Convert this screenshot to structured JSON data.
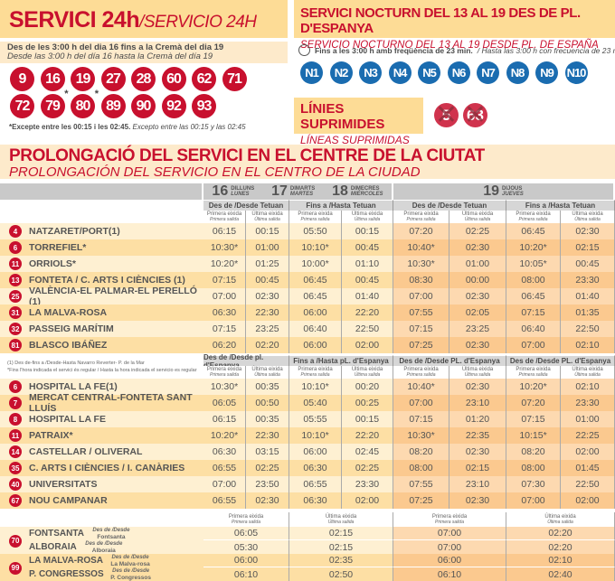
{
  "service24": {
    "title": "SERVICI 24h",
    "title_es": "/SERVICIO 24H",
    "period": "Des de les 3:00 h del dia 16 fins a la Cremà del dia 19",
    "period_es": "Desde las 3:00 h del día 16 hasta la Cremà  del día 19",
    "lines_row1": [
      "9",
      "16",
      "19",
      "27",
      "28",
      "60",
      "62",
      "71"
    ],
    "lines_row2": [
      "72",
      "79",
      "80",
      "89",
      "90",
      "92",
      "93"
    ],
    "starred": [
      "79",
      "80"
    ],
    "note": "*Excepte entre les 00:15 i les 02:45.",
    "note_es": "Excepto entre las 00:15 y las 02:45"
  },
  "night": {
    "title": "SERVICI NOCTURN DEL 13 AL 19 DES DE PL. D'ESPANYA",
    "title_es": "SERVICIO NOCTURNO DEL 13 AL 19 DESDE PL. DE ESPAÑA",
    "freq": "Fins a les 3:00 h amb freqüència de 23 min.",
    "freq_es": "/ Hasta las 3:00 h con frecuencia de 23 min.",
    "lines": [
      "N1",
      "N2",
      "N3",
      "N4",
      "N5",
      "N6",
      "N7",
      "N8",
      "N9",
      "N10"
    ]
  },
  "suppressed": {
    "title": "LÍNIES SUPRIMIDES",
    "title_es": "LÍNEAS SUPRIMIDAS",
    "lines": [
      "5",
      "63"
    ]
  },
  "prolong": {
    "title": "PROLONGACIÓ DEL SERVICI EN EL CENTRE DE LA CIUTAT",
    "title_es": "PROLONGACIÓN DEL SERVICIO EN EL CENTRO DE LA CIUDAD"
  },
  "colors": {
    "red": "#c8102e",
    "blue": "#1a6cb0",
    "cream": "#fddc96"
  },
  "days": [
    {
      "n": "16",
      "ca": "DILLUNS",
      "es": "LUNES"
    },
    {
      "n": "17",
      "ca": "DIMARTS",
      "es": "MARTES"
    },
    {
      "n": "18",
      "ca": "DIMECRES",
      "es": "MIÉRCOLES"
    },
    {
      "n": "19",
      "ca": "DIJOUS",
      "es": "JUEVES"
    }
  ],
  "col_first": "Primera eixida",
  "col_first_es": "Primera salida",
  "col_last": "Última eixida",
  "col_last_es": "Última salida",
  "table1": {
    "groups": [
      "Des de /Desde Tetuan",
      "Fins a /Hasta Tetuan",
      "Des de /Desde Tetuan",
      "Fins a /Hasta Tetuan"
    ],
    "rows": [
      {
        "line": "4",
        "name": "NATZARET/PORT(1)",
        "t": [
          "06:15",
          "00:15",
          "05:50",
          "00:15",
          "07:20",
          "02:25",
          "06:45",
          "02:30"
        ]
      },
      {
        "line": "6",
        "name": "TORREFIEL*",
        "t": [
          "10:30*",
          "01:00",
          "10:10*",
          "00:45",
          "10:40*",
          "02:30",
          "10:20*",
          "02:15"
        ]
      },
      {
        "line": "11",
        "name": "ORRIOLS*",
        "t": [
          "10:20*",
          "01:25",
          "10:00*",
          "01:10",
          "10:30*",
          "01:00",
          "10:05*",
          "00:45"
        ]
      },
      {
        "line": "13",
        "name": "FONTETA / C. ARTS I CIÈNCIES (1)",
        "t": [
          "07:15",
          "00:45",
          "06:45",
          "00:45",
          "08:30",
          "00:00",
          "08:00",
          "23:30"
        ]
      },
      {
        "line": "25",
        "name": "VALÈNCIA-EL PALMAR-EL PERELLÓ (1)",
        "t": [
          "07:00",
          "02:30",
          "06:45",
          "01:40",
          "07:00",
          "02:30",
          "06:45",
          "01:40"
        ]
      },
      {
        "line": "31",
        "name": "LA MALVA-ROSA",
        "t": [
          "06:30",
          "22:30",
          "06:00",
          "22:20",
          "07:55",
          "02:05",
          "07:15",
          "01:35"
        ]
      },
      {
        "line": "32",
        "name": "PASSEIG MARÍTIM",
        "t": [
          "07:15",
          "23:25",
          "06:40",
          "22:50",
          "07:15",
          "23:25",
          "06:40",
          "22:50"
        ]
      },
      {
        "line": "81",
        "name": "BLASCO IBÁÑEZ",
        "t": [
          "06:20",
          "02:20",
          "06:00",
          "02:00",
          "07:25",
          "02:30",
          "07:00",
          "02:10"
        ]
      }
    ]
  },
  "footnotes": [
    "(1) Des de-fins a /Desde-Hasta Navarro Reverter- P. de la Mar",
    "*Fins l'hora indicada el servici és regular / Hasta la hora indicada el servicio es regular"
  ],
  "table2": {
    "groups": [
      "Des de /Desde pl. d'Espanya",
      "Fins a /Hasta pL. d'Espanya",
      "Des de /Desde PL. d'Espanya",
      "Des de /Desde PL. d'Espanya"
    ],
    "rows": [
      {
        "line": "6",
        "name": "HOSPITAL LA FE(1)",
        "t": [
          "10:30*",
          "00:35",
          "10:10*",
          "00:20",
          "10:40*",
          "02:30",
          "10:20*",
          "02:10"
        ]
      },
      {
        "line": "7",
        "name": "MERCAT CENTRAL-FONTETA SANT LLUÍS",
        "t": [
          "06:05",
          "00:50",
          "05:40",
          "00:25",
          "07:00",
          "23:10",
          "07:20",
          "23:30"
        ]
      },
      {
        "line": "8",
        "name": "HOSPITAL LA FE",
        "t": [
          "06:15",
          "00:35",
          "05:55",
          "00:15",
          "07:15",
          "01:20",
          "07:15",
          "01:00"
        ]
      },
      {
        "line": "11",
        "name": "PATRAIX*",
        "t": [
          "10:20*",
          "22:30",
          "10:10*",
          "22:20",
          "10:30*",
          "22:35",
          "10:15*",
          "22:25"
        ]
      },
      {
        "line": "14",
        "name": "CASTELLAR / OLIVERAL",
        "t": [
          "06:30",
          "03:15",
          "06:00",
          "02:45",
          "08:20",
          "02:30",
          "08:20",
          "02:00"
        ]
      },
      {
        "line": "35",
        "name": "C. ARTS I CIÈNCIES / I. CANÀRIES",
        "t": [
          "06:55",
          "02:25",
          "06:30",
          "02:25",
          "08:00",
          "02:15",
          "08:00",
          "01:45"
        ]
      },
      {
        "line": "40",
        "name": "UNIVERSITATS",
        "t": [
          "07:00",
          "23:50",
          "06:55",
          "23:30",
          "07:55",
          "23:10",
          "07:30",
          "22:50"
        ]
      },
      {
        "line": "67",
        "name": "NOU CAMPANAR",
        "t": [
          "06:55",
          "02:30",
          "06:30",
          "02:00",
          "07:25",
          "02:30",
          "07:00",
          "02:00"
        ]
      }
    ]
  },
  "table3": {
    "rows": [
      {
        "line": "70",
        "name": [
          "FONTSANTA",
          "ALBORAIA"
        ],
        "dirs": [
          {
            "label": "Des de /Desde",
            "from": "Fontsanta",
            "t": [
              "06:05",
              "02:15",
              "07:00",
              "02:20"
            ]
          },
          {
            "label": "Des de /Desde",
            "from": "Alboraia",
            "t": [
              "05:30",
              "02:15",
              "07:00",
              "02:20"
            ]
          }
        ]
      },
      {
        "line": "99",
        "name": [
          "LA MALVA-ROSA",
          "P. CONGRESSOS"
        ],
        "dirs": [
          {
            "label": "Des de /Desde",
            "from": "La Malva-rosa",
            "t": [
              "06:00",
              "02:35",
              "06:00",
              "02:10"
            ]
          },
          {
            "label": "Des de /Desde",
            "from": "P. Congressos",
            "t": [
              "06:10",
              "02:50",
              "06:10",
              "02:40"
            ]
          }
        ]
      }
    ]
  }
}
